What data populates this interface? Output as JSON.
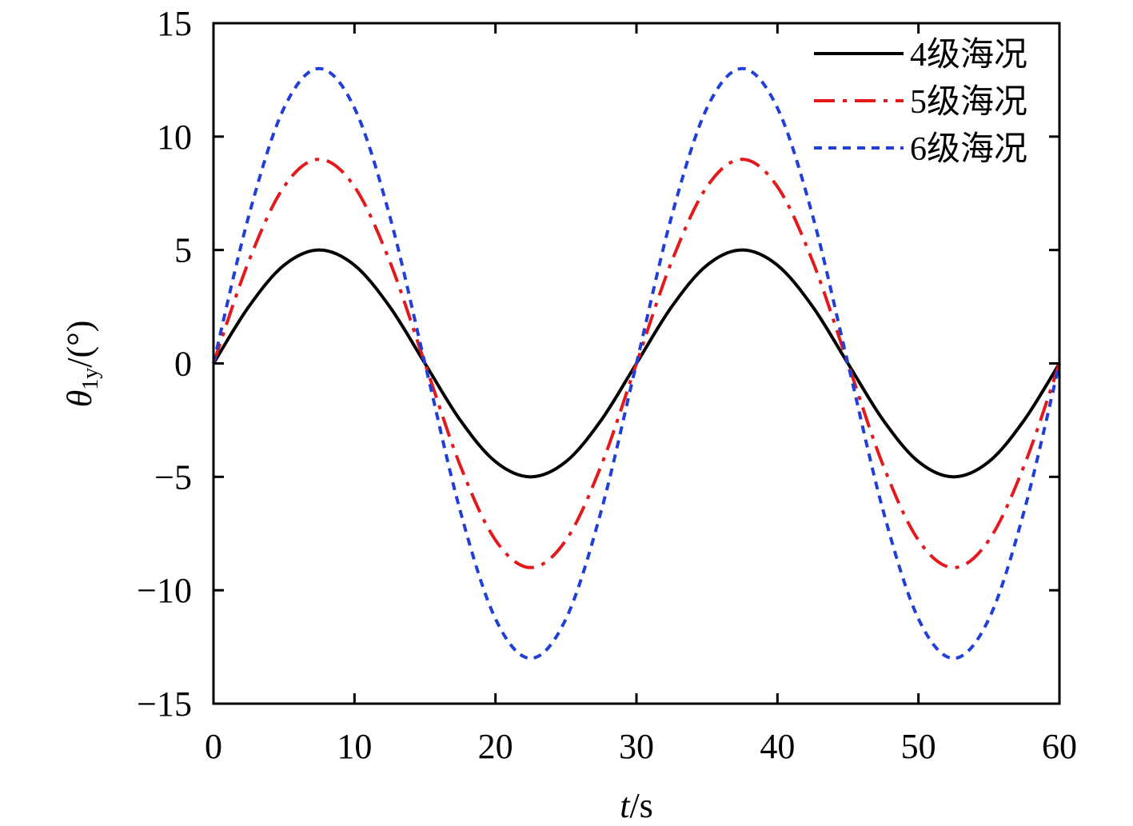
{
  "chart_data": {
    "type": "line",
    "title": "",
    "xlabel": "t/s",
    "xlabel_var": "t",
    "xlabel_unit": "/s",
    "ylabel": "θ1y/(°)",
    "ylabel_var": "θ",
    "ylabel_sub": "1y",
    "ylabel_unit": "/(°)",
    "xlim": [
      0,
      60
    ],
    "ylim": [
      -15,
      15
    ],
    "xticks": [
      0,
      10,
      20,
      30,
      40,
      50,
      60
    ],
    "xtick_labels": [
      "0",
      "10",
      "20",
      "30",
      "40",
      "50",
      "60"
    ],
    "yticks": [
      -15,
      -10,
      -5,
      0,
      5,
      10,
      15
    ],
    "ytick_labels": [
      "−15",
      "−10",
      "−5",
      "0",
      "5",
      "10",
      "15"
    ],
    "grid": false,
    "legend_position": "top-right",
    "x": [
      0,
      2.5,
      5,
      7.5,
      10,
      12.5,
      15,
      17.5,
      20,
      22.5,
      25,
      27.5,
      30,
      32.5,
      35,
      37.5,
      40,
      42.5,
      45,
      47.5,
      50,
      52.5,
      55,
      57.5,
      60
    ],
    "series": [
      {
        "name": "4级海况",
        "color": "#000000",
        "dash": "solid",
        "values": [
          0,
          2.5,
          4.33,
          5.0,
          4.33,
          2.5,
          0,
          -2.5,
          -4.33,
          -5.0,
          -4.33,
          -2.5,
          0,
          2.5,
          4.33,
          5.0,
          4.33,
          2.5,
          0,
          -2.5,
          -4.33,
          -5.0,
          -4.33,
          -2.5,
          0
        ]
      },
      {
        "name": "5级海况",
        "color": "#e31a1c",
        "dash": "dashdot",
        "values": [
          0,
          4.5,
          7.79,
          9.0,
          7.79,
          4.5,
          0,
          -4.5,
          -7.79,
          -9.0,
          -7.79,
          -4.5,
          0,
          4.5,
          7.79,
          9.0,
          7.79,
          4.5,
          0,
          -4.5,
          -7.79,
          -9.0,
          -7.79,
          -4.5,
          0
        ]
      },
      {
        "name": "6级海况",
        "color": "#1f3fd6",
        "dash": "dotted",
        "values": [
          0,
          6.5,
          11.26,
          13.0,
          11.26,
          6.5,
          0,
          -6.5,
          -11.26,
          -13.0,
          -11.26,
          -6.5,
          0,
          6.5,
          11.26,
          13.0,
          11.26,
          6.5,
          0,
          -6.5,
          -11.26,
          -13.0,
          -11.26,
          -6.5,
          0
        ]
      }
    ]
  }
}
